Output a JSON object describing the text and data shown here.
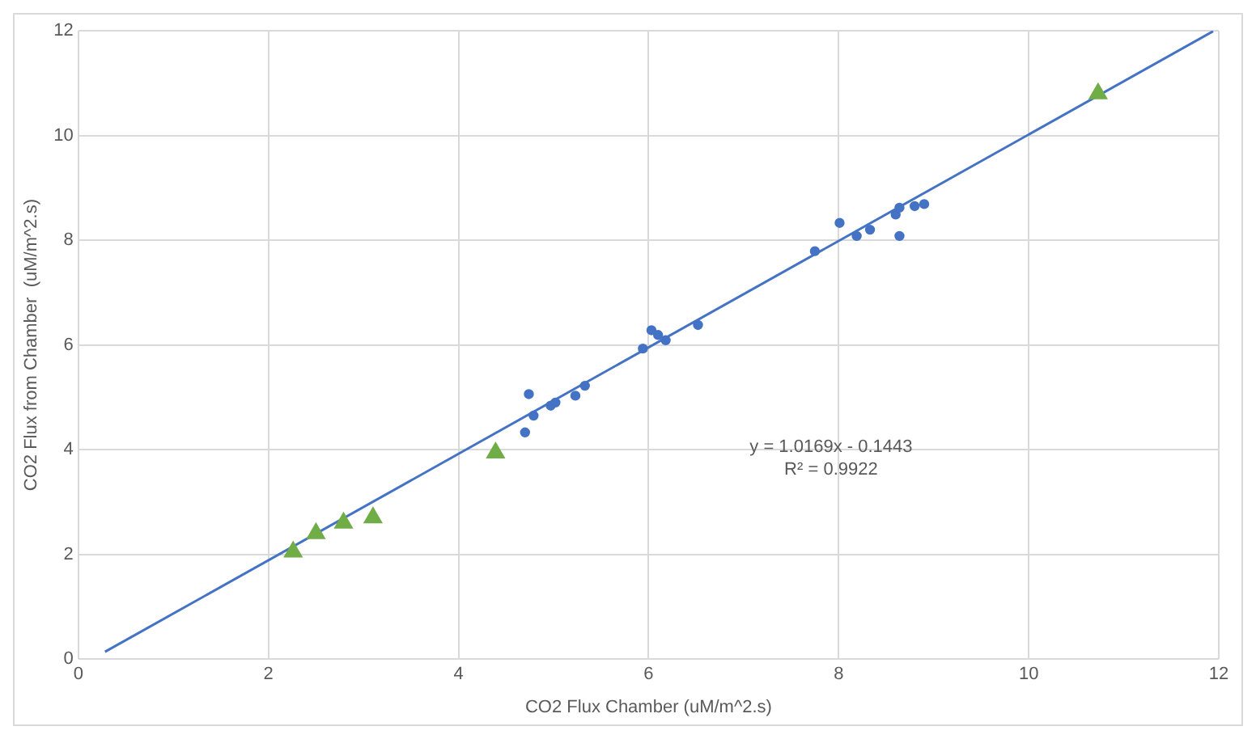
{
  "chart_data": {
    "type": "scatter",
    "xlabel": "CO2 Flux Chamber (uM/m^2.s)",
    "ylabel": "CO2 Flux from Chamber  (uM/m^2.s)",
    "xlim": [
      0,
      12
    ],
    "xticks": [
      0,
      2,
      4,
      6,
      8,
      10,
      12
    ],
    "ylim": [
      0,
      12
    ],
    "yticks": [
      0,
      2,
      4,
      6,
      8,
      10,
      12
    ],
    "grid": true,
    "legend": false,
    "annotations": [
      "y = 1.0169x - 0.1443",
      "R² = 0.9922"
    ],
    "series": [
      {
        "type": "scatter",
        "marker": "circle",
        "color": "#4472c4",
        "x": [
          4.74,
          4.7,
          4.79,
          4.97,
          5.02,
          5.23,
          5.33,
          5.94,
          6.03,
          6.1,
          6.18,
          6.52,
          7.75,
          8.01,
          8.19,
          8.33,
          8.6,
          8.64,
          8.8,
          8.9,
          8.64
        ],
        "values": [
          5.06,
          4.33,
          4.65,
          4.84,
          4.9,
          5.03,
          5.22,
          5.93,
          6.28,
          6.19,
          6.09,
          6.38,
          7.79,
          8.33,
          8.08,
          8.2,
          8.49,
          8.62,
          8.65,
          8.69,
          8.08
        ]
      },
      {
        "type": "scatter",
        "marker": "triangle",
        "color": "#70ad47",
        "x": [
          2.26,
          2.5,
          2.79,
          3.1,
          4.39,
          10.73
        ],
        "values": [
          2.05,
          2.4,
          2.6,
          2.7,
          3.94,
          10.8
        ]
      },
      {
        "type": "line",
        "marker": "none",
        "color": "#4472c4",
        "x": [
          0.28,
          11.94
        ],
        "values": [
          0.14,
          11.99
        ]
      }
    ]
  }
}
